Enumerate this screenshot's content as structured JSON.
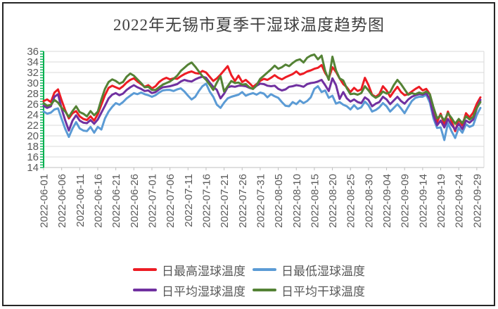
{
  "chart_data": {
    "type": "line",
    "title": "2022年无锡市夏季干湿球温度趋势图",
    "xlabel": "",
    "ylabel": "",
    "ylim": [
      14,
      36
    ],
    "yticks": [
      36,
      34,
      32,
      30,
      28,
      26,
      24,
      22,
      20,
      18,
      16,
      14
    ],
    "grid": "horizontal",
    "legend_position": "bottom",
    "n_points": 122,
    "label_step": 5,
    "x_labels": [
      "2022-06-01",
      "2022-06-06",
      "2022-06-11",
      "2022-06-16",
      "2022-06-21",
      "2022-06-26",
      "2022-07-01",
      "2022-07-06",
      "2022-07-11",
      "2022-07-16",
      "2022-07-21",
      "2022-07-26",
      "2022-07-31",
      "2022-08-05",
      "2022-08-10",
      "2022-08-15",
      "2022-08-20",
      "2022-08-25",
      "2022-08-30",
      "2022-09-04",
      "2022-09-09",
      "2022-09-14",
      "2022-09-19",
      "2022-09-24",
      "2022-09-29"
    ],
    "colors": {
      "gridline": "#d9d9d9",
      "axis": "#bfbfbf",
      "tick_text": "#595959",
      "y_axis_ruler": "#00B050",
      "title_text": "#3f3f3f"
    },
    "series": [
      {
        "id": "daily-max-wet-bulb",
        "name": "日最高湿球温度",
        "color": "#ED1C24",
        "values": [
          26.6,
          26.9,
          26.4,
          28.2,
          28.8,
          26.7,
          24.8,
          23.3,
          24.3,
          24.7,
          23.7,
          23.2,
          23.0,
          23.7,
          22.9,
          24.1,
          25.9,
          27.7,
          29.1,
          29.5,
          29.2,
          28.9,
          29.4,
          30.1,
          30.6,
          30.9,
          30.3,
          29.8,
          29.3,
          29.6,
          29.0,
          29.4,
          30.2,
          30.7,
          31.0,
          30.7,
          30.9,
          30.8,
          31.3,
          31.7,
          32.0,
          32.2,
          31.9,
          31.8,
          32.3,
          32.0,
          31.2,
          30.4,
          30.9,
          31.6,
          32.4,
          33.2,
          31.5,
          30.4,
          31.4,
          30.2,
          30.6,
          30.0,
          29.3,
          29.8,
          30.4,
          30.8,
          30.6,
          31.0,
          31.5,
          31.0,
          30.7,
          31.1,
          31.4,
          31.7,
          32.2,
          31.6,
          31.8,
          32.2,
          32.4,
          32.7,
          32.9,
          33.4,
          31.9,
          30.9,
          33.0,
          32.1,
          30.9,
          29.8,
          29.2,
          28.3,
          29.1,
          28.5,
          28.8,
          31.0,
          29.6,
          27.8,
          27.4,
          27.9,
          29.4,
          28.6,
          27.4,
          28.4,
          29.3,
          28.3,
          27.7,
          27.9,
          28.4,
          28.9,
          29.3,
          28.6,
          28.9,
          27.9,
          24.9,
          22.6,
          24.2,
          22.2,
          24.6,
          22.8,
          20.9,
          23.1,
          22.0,
          24.3,
          23.5,
          24.4,
          26.1,
          27.3
        ]
      },
      {
        "id": "daily-min-wet-bulb",
        "name": "日最低湿球温度",
        "color": "#5B9BD5",
        "values": [
          24.6,
          24.2,
          24.4,
          25.0,
          25.2,
          23.2,
          21.3,
          19.8,
          21.4,
          22.6,
          21.4,
          21.0,
          20.9,
          21.7,
          20.6,
          21.7,
          21.2,
          23.3,
          24.6,
          25.5,
          26.2,
          25.9,
          26.4,
          27.1,
          27.6,
          28.1,
          27.9,
          28.2,
          27.9,
          27.7,
          27.4,
          27.7,
          28.2,
          28.6,
          28.7,
          28.7,
          28.5,
          28.8,
          29.0,
          28.4,
          27.6,
          26.9,
          27.4,
          28.5,
          29.4,
          29.9,
          28.4,
          27.4,
          25.9,
          25.3,
          26.3,
          27.1,
          27.4,
          27.6,
          27.8,
          28.3,
          27.6,
          27.9,
          28.1,
          27.8,
          28.2,
          28.0,
          27.3,
          27.9,
          27.5,
          27.2,
          26.4,
          25.7,
          25.6,
          26.4,
          26.0,
          26.7,
          26.2,
          26.6,
          27.3,
          28.9,
          29.4,
          28.3,
          28.6,
          27.2,
          27.6,
          26.1,
          26.4,
          25.9,
          25.6,
          25.0,
          25.8,
          25.1,
          25.4,
          26.5,
          25.8,
          24.6,
          24.9,
          25.4,
          26.2,
          25.6,
          24.6,
          25.3,
          26.0,
          25.2,
          24.3,
          25.5,
          26.6,
          27.2,
          27.4,
          27.4,
          27.8,
          26.3,
          23.3,
          21.5,
          21.6,
          19.2,
          22.4,
          20.9,
          19.6,
          21.5,
          20.6,
          22.2,
          21.7,
          22.0,
          24.0,
          25.3
        ]
      },
      {
        "id": "daily-avg-wet-bulb",
        "name": "日平均湿球温度",
        "color": "#7030A0",
        "values": [
          25.7,
          25.3,
          25.6,
          27.4,
          27.9,
          25.1,
          22.9,
          21.0,
          22.9,
          23.9,
          22.9,
          22.5,
          22.4,
          23.0,
          22.3,
          23.1,
          24.4,
          25.7,
          27.1,
          27.8,
          28.1,
          27.7,
          28.0,
          28.7,
          29.2,
          29.6,
          29.2,
          28.9,
          28.5,
          28.6,
          28.1,
          28.3,
          28.8,
          29.2,
          29.3,
          29.4,
          29.6,
          29.8,
          30.3,
          30.6,
          30.4,
          30.3,
          30.7,
          31.0,
          31.2,
          31.0,
          30.1,
          29.3,
          28.7,
          27.1,
          28.0,
          29.2,
          29.4,
          29.3,
          29.5,
          29.5,
          29.4,
          29.1,
          28.9,
          29.5,
          29.9,
          29.8,
          29.5,
          29.4,
          29.5,
          28.9,
          28.6,
          28.8,
          29.3,
          29.4,
          29.6,
          29.5,
          29.3,
          29.8,
          30.0,
          30.1,
          30.3,
          30.6,
          29.6,
          28.5,
          30.9,
          29.6,
          27.0,
          28.3,
          27.1,
          26.5,
          26.9,
          26.4,
          26.2,
          27.3,
          26.8,
          25.6,
          26.1,
          26.4,
          27.4,
          26.9,
          26.0,
          26.7,
          27.4,
          26.6,
          26.1,
          26.9,
          27.4,
          27.7,
          27.9,
          27.8,
          28.1,
          26.9,
          23.9,
          22.0,
          22.9,
          21.6,
          23.2,
          22.1,
          21.2,
          22.3,
          21.3,
          22.9,
          22.5,
          23.1,
          25.2,
          26.8
        ]
      },
      {
        "id": "daily-avg-dry-bulb",
        "name": "日平均干球温度",
        "color": "#548235",
        "values": [
          26.2,
          25.7,
          25.9,
          26.8,
          26.3,
          25.3,
          24.6,
          23.6,
          24.7,
          25.6,
          24.5,
          24.2,
          23.7,
          24.7,
          23.9,
          24.6,
          26.9,
          28.9,
          30.2,
          30.7,
          30.4,
          29.9,
          30.2,
          31.2,
          31.8,
          31.4,
          30.7,
          30.0,
          29.2,
          29.3,
          28.7,
          28.7,
          29.2,
          29.7,
          30.0,
          30.3,
          30.8,
          31.4,
          32.3,
          32.9,
          33.5,
          33.9,
          33.1,
          32.2,
          31.3,
          30.6,
          29.7,
          28.7,
          30.1,
          31.3,
          28.4,
          29.4,
          30.4,
          30.0,
          30.1,
          29.7,
          29.8,
          29.2,
          28.9,
          29.6,
          30.8,
          31.4,
          32.0,
          32.6,
          33.3,
          32.7,
          33.0,
          33.5,
          33.2,
          33.8,
          34.3,
          34.5,
          33.9,
          34.8,
          35.2,
          35.4,
          34.5,
          35.2,
          32.3,
          30.6,
          35.0,
          32.4,
          30.9,
          30.5,
          29.0,
          27.9,
          28.0,
          27.8,
          28.1,
          29.4,
          28.6,
          27.7,
          27.2,
          27.6,
          28.4,
          28.0,
          28.3,
          29.6,
          30.6,
          29.8,
          28.8,
          27.8,
          28.1,
          27.9,
          28.2,
          28.0,
          28.4,
          27.9,
          25.4,
          23.3,
          23.9,
          22.9,
          24.3,
          23.4,
          22.3,
          23.2,
          22.4,
          23.7,
          23.1,
          23.6,
          25.3,
          26.4
        ]
      }
    ]
  }
}
